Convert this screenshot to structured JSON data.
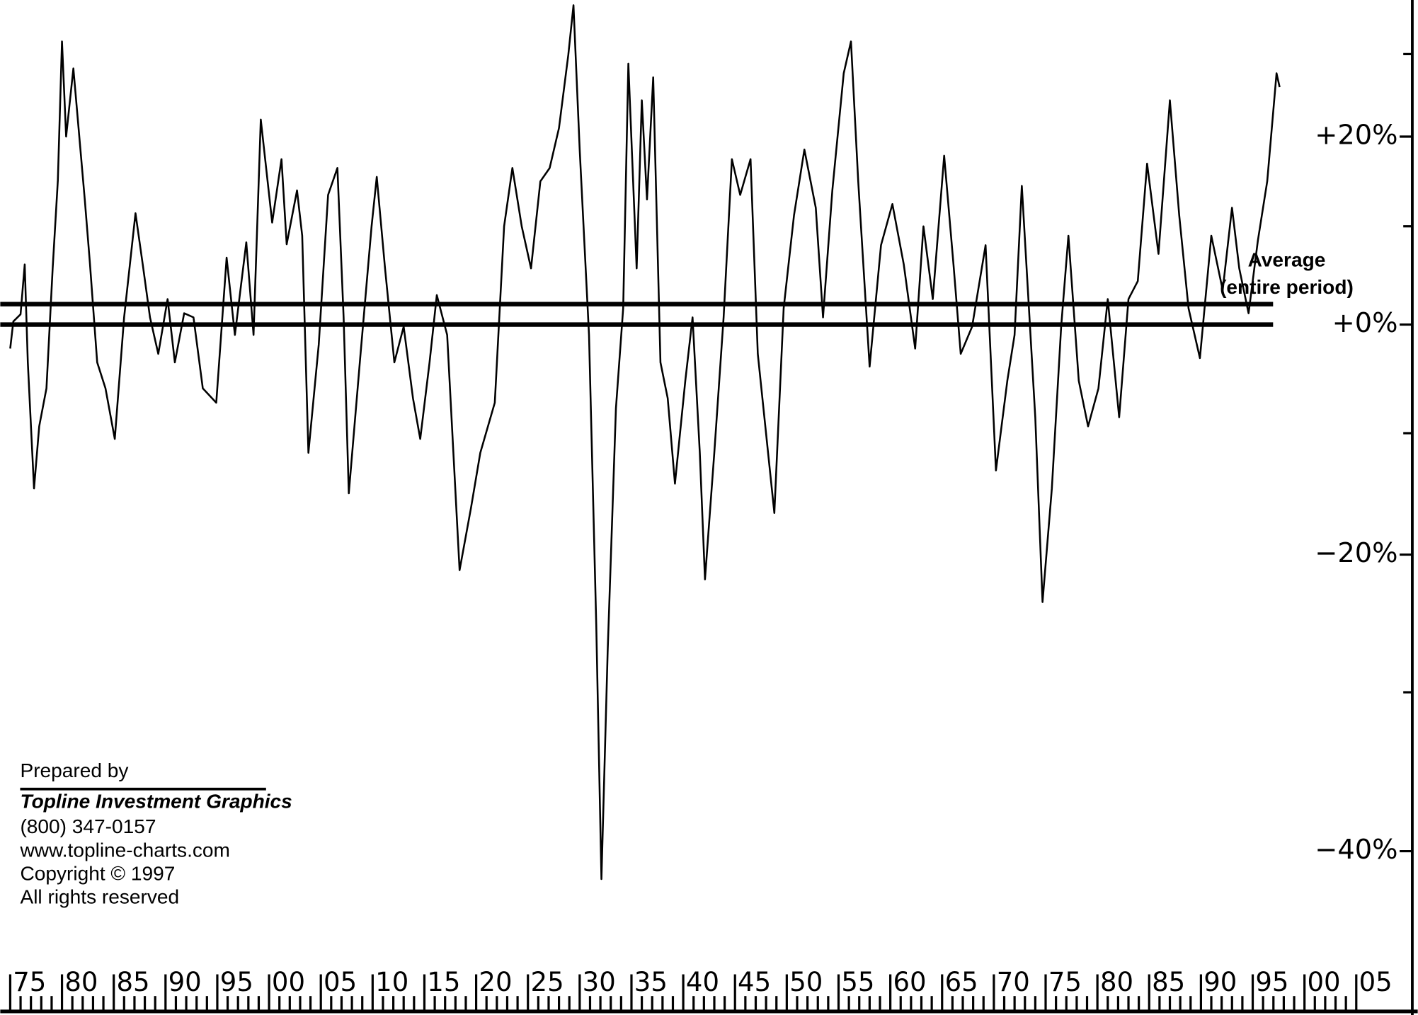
{
  "chart_data": {
    "type": "line",
    "color": "#000000",
    "yscale": "log-return",
    "x": [
      1875,
      1875.3,
      1876,
      1876.4,
      1876.7,
      1877.3,
      1877.8,
      1878.5,
      1879.1,
      1879.6,
      1880,
      1880.4,
      1881.1,
      1881.6,
      1882.2,
      1882.7,
      1883.4,
      1884.2,
      1885.1,
      1886,
      1887.1,
      1887.8,
      1888.5,
      1889.3,
      1890.2,
      1890.9,
      1891.8,
      1892.7,
      1893.6,
      1894.9,
      1895.9,
      1896.7,
      1897.8,
      1898.5,
      1899.2,
      1900.3,
      1901.2,
      1901.7,
      1902.7,
      1903.2,
      1903.8,
      1904.8,
      1905.7,
      1906.6,
      1907.2,
      1907.7,
      1908.8,
      1909.9,
      1910.4,
      1911.2,
      1912.1,
      1913,
      1913.9,
      1914.6,
      1915.5,
      1916.2,
      1917.2,
      1918.4,
      1919.5,
      1920.4,
      1921.8,
      1922.7,
      1923.5,
      1924.4,
      1925.3,
      1926.2,
      1927.1,
      1928,
      1928.9,
      1929.4,
      1930,
      1930.9,
      1931.6,
      1932.1,
      1932.7,
      1933.5,
      1934.2,
      1934.7,
      1935.5,
      1936,
      1936.5,
      1937.1,
      1937.8,
      1938.5,
      1939.2,
      1940.2,
      1940.9,
      1941.6,
      1942.1,
      1943,
      1943.9,
      1944.7,
      1945.5,
      1946.5,
      1947.2,
      1948.1,
      1948.8,
      1949.7,
      1950.7,
      1951.7,
      1952.8,
      1953.5,
      1954.4,
      1955.5,
      1956.2,
      1956.9,
      1958,
      1959.1,
      1960.2,
      1961.3,
      1962.4,
      1963.2,
      1964.1,
      1965.2,
      1966.1,
      1966.8,
      1967.9,
      1969.2,
      1970.2,
      1971.3,
      1972,
      1972.7,
      1974,
      1974.7,
      1975.6,
      1976.5,
      1977.2,
      1978.2,
      1979.1,
      1980.1,
      1981,
      1982.1,
      1983,
      1983.9,
      1984.8,
      1985.9,
      1987,
      1987.9,
      1988.8,
      1989.9,
      1991,
      1992.1,
      1993,
      1993.7,
      1994.6,
      1995.5,
      1996.4,
      1997.3,
      1997.6
    ],
    "values": [
      -2.3,
      0.3,
      1,
      6,
      -3.6,
      -14.7,
      -9.4,
      -6,
      5.6,
      15,
      31.6,
      20,
      28.2,
      21,
      12.9,
      6.1,
      -3.6,
      -6,
      -10.5,
      0.7,
      11.4,
      6,
      0.7,
      -2.8,
      2.5,
      -3.6,
      1.1,
      0.7,
      -6,
      -7.3,
      6.7,
      -1,
      8.3,
      -1,
      22,
      10.4,
      17.4,
      8.1,
      13.9,
      9,
      -11.7,
      -1.9,
      13.4,
      16.4,
      0.7,
      -15.1,
      -3.2,
      10,
      15.4,
      5.6,
      -3.6,
      -0.2,
      -6.9,
      -10.5,
      -3.6,
      2.9,
      -1,
      -21.2,
      -16.3,
      -11.7,
      -7.3,
      10,
      16.4,
      10,
      5.6,
      14.9,
      16.4,
      21,
      29.9,
      36.3,
      18.5,
      -1,
      -25.3,
      -41.6,
      -27.2,
      -7.8,
      1.6,
      28.8,
      5.6,
      24.3,
      12.9,
      27.1,
      -3.6,
      -6.9,
      -14.3,
      -5.3,
      0.7,
      -11.7,
      -21.9,
      -11.7,
      0.7,
      17.4,
      13.4,
      17.4,
      -2.8,
      -10.9,
      -16.7,
      1.6,
      11.2,
      18.5,
      12,
      0.7,
      13.9,
      27.6,
      31.6,
      14.9,
      -4,
      8,
      12.4,
      6,
      -2.3,
      10,
      2.5,
      17.8,
      6,
      -2.8,
      -0.2,
      8,
      -13.2,
      -5.3,
      -1,
      14.4,
      -8.6,
      -23.6,
      -14.7,
      -0.2,
      9,
      -5.3,
      -9.4,
      -6,
      2.5,
      -8.6,
      2.5,
      4.3,
      16.9,
      7.1,
      24.3,
      11.2,
      1.6,
      -3.2,
      9,
      3.4,
      12,
      5.6,
      1.1,
      8.5,
      14.9,
      27.6,
      25.9
    ],
    "xlim": [
      1875,
      2005
    ],
    "ylim": [
      -48,
      37
    ],
    "xticks": [
      {
        "value": 1875,
        "label": "75"
      },
      {
        "value": 1880,
        "label": "80"
      },
      {
        "value": 1885,
        "label": "85"
      },
      {
        "value": 1890,
        "label": "90"
      },
      {
        "value": 1895,
        "label": "95"
      },
      {
        "value": 1900,
        "label": "00"
      },
      {
        "value": 1905,
        "label": "05"
      },
      {
        "value": 1910,
        "label": "10"
      },
      {
        "value": 1915,
        "label": "15"
      },
      {
        "value": 1920,
        "label": "20"
      },
      {
        "value": 1925,
        "label": "25"
      },
      {
        "value": 1930,
        "label": "30"
      },
      {
        "value": 1935,
        "label": "35"
      },
      {
        "value": 1940,
        "label": "40"
      },
      {
        "value": 1945,
        "label": "45"
      },
      {
        "value": 1950,
        "label": "50"
      },
      {
        "value": 1955,
        "label": "55"
      },
      {
        "value": 1960,
        "label": "60"
      },
      {
        "value": 1965,
        "label": "65"
      },
      {
        "value": 1970,
        "label": "70"
      },
      {
        "value": 1975,
        "label": "75"
      },
      {
        "value": 1980,
        "label": "80"
      },
      {
        "value": 1985,
        "label": "85"
      },
      {
        "value": 1990,
        "label": "90"
      },
      {
        "value": 1995,
        "label": "95"
      },
      {
        "value": 2000,
        "label": "00"
      },
      {
        "value": 2005,
        "label": "05"
      }
    ],
    "xminorticks": [
      1876,
      1877,
      1878,
      1879,
      1881,
      1882,
      1883,
      1884,
      1886,
      1887,
      1888,
      1889,
      1891,
      1892,
      1893,
      1894,
      1896,
      1897,
      1898,
      1899,
      1901,
      1902,
      1903,
      1904,
      1906,
      1907,
      1908,
      1909,
      1911,
      1912,
      1913,
      1914,
      1916,
      1917,
      1918,
      1919,
      1921,
      1922,
      1923,
      1924,
      1926,
      1927,
      1928,
      1929,
      1931,
      1932,
      1933,
      1934,
      1936,
      1937,
      1938,
      1939,
      1941,
      1942,
      1943,
      1944,
      1946,
      1947,
      1948,
      1949,
      1951,
      1952,
      1953,
      1954,
      1956,
      1957,
      1958,
      1959,
      1961,
      1962,
      1963,
      1964,
      1966,
      1967,
      1968,
      1969,
      1971,
      1972,
      1973,
      1974,
      1976,
      1977,
      1978,
      1979,
      1981,
      1982,
      1983,
      1984,
      1986,
      1987,
      1988,
      1989,
      1991,
      1992,
      1993,
      1994,
      1996,
      1997,
      1998,
      1999,
      2001,
      2002,
      2003,
      2004
    ],
    "yticks": [
      {
        "value": 20,
        "label": "+20%"
      },
      {
        "value": 0,
        "label": "+0%"
      },
      {
        "value": -20,
        "label": "−20%"
      },
      {
        "value": -40,
        "label": "−40%"
      }
    ],
    "yminorticks": [
      30,
      10,
      -10,
      -30
    ],
    "average": 2,
    "average_label": [
      "Average",
      "(entire period)"
    ],
    "credits": [
      "Prepared by",
      "Topline Investment Graphics",
      "(800) 347-0157",
      "www.topline-charts.com",
      "Copyright © 1997",
      "All rights reserved"
    ]
  }
}
